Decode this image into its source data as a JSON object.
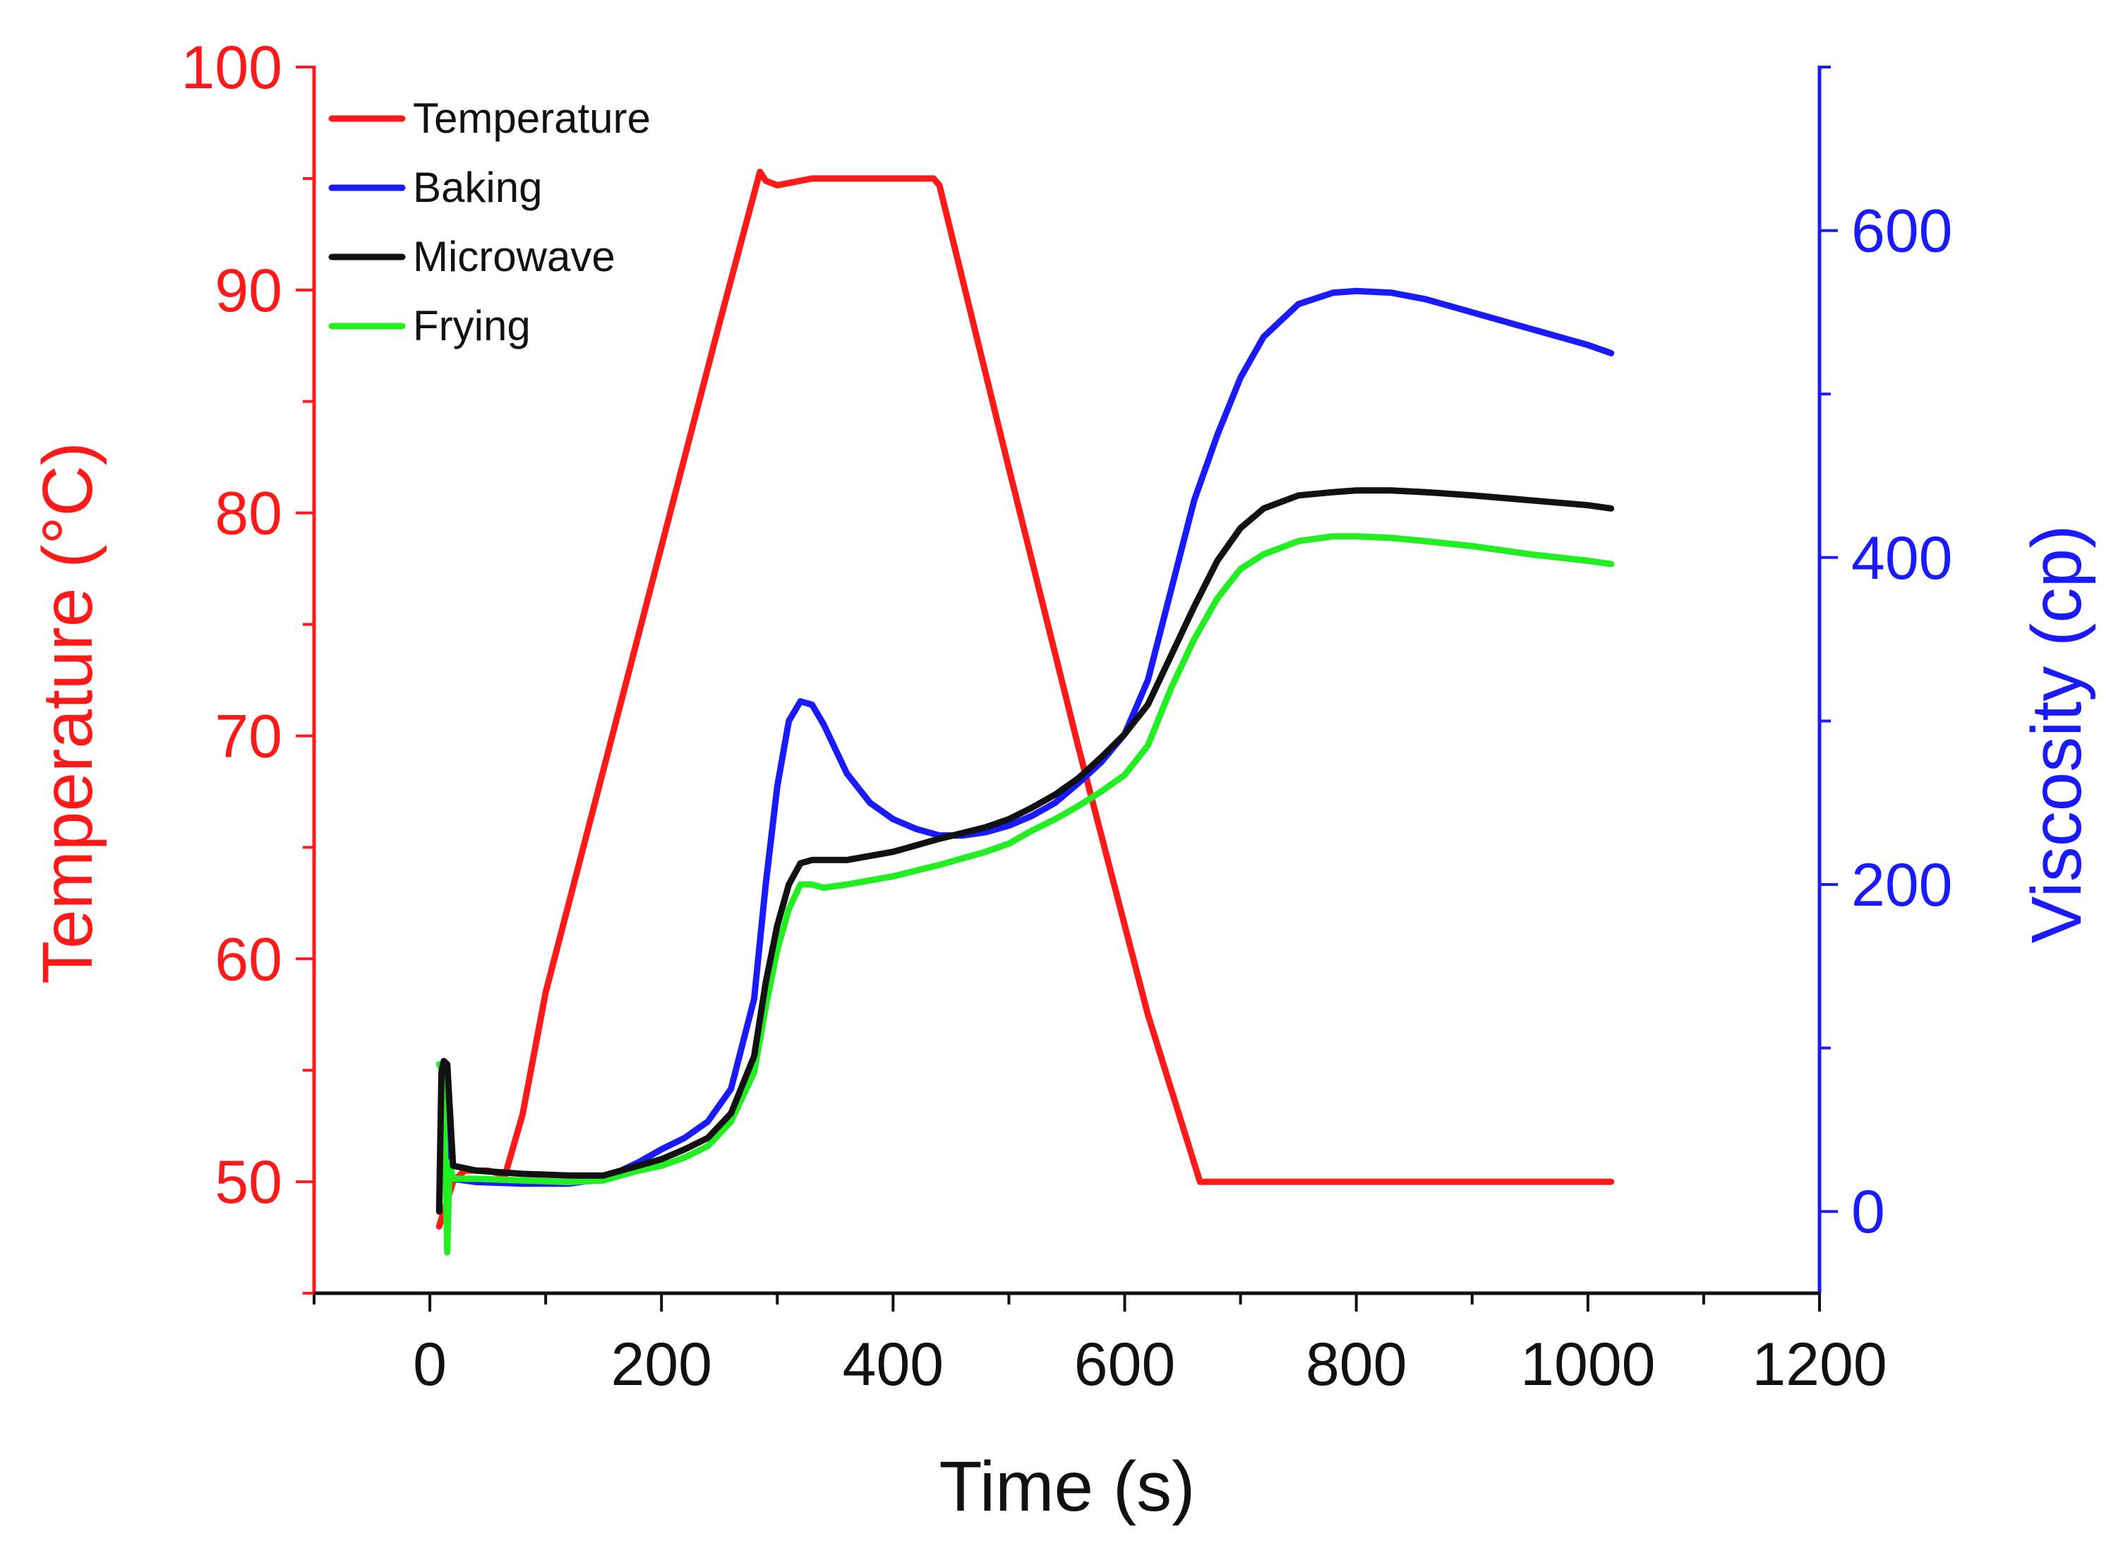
{
  "chart_data": {
    "type": "line",
    "title": "",
    "xlabel": "Time (s)",
    "ylabel_left": "Temperature (°C)",
    "ylabel_right": "Viscosity (cp)",
    "xlim": [
      -100,
      1200
    ],
    "ylim_left": [
      45,
      100
    ],
    "ylim_right": [
      -50,
      700
    ],
    "x_ticks": [
      0,
      200,
      400,
      600,
      800,
      1000,
      1200
    ],
    "y_left_ticks": [
      50,
      60,
      70,
      80,
      90,
      100
    ],
    "y_right_ticks": [
      0,
      200,
      400,
      600
    ],
    "grid": false,
    "legend_position": "top-left",
    "colors": {
      "left_axis": "#ff1a1a",
      "right_axis": "#1a1aff",
      "x_axis": "#111111"
    },
    "series": [
      {
        "name": "Temperature",
        "axis": "left",
        "color": "#ff1a1a",
        "x": [
          8,
          20,
          30,
          50,
          65,
          80,
          100,
          150,
          200,
          250,
          285,
          290,
          300,
          330,
          400,
          435,
          440,
          500,
          560,
          620,
          665,
          700,
          800,
          900,
          1020
        ],
        "y": [
          48.0,
          50.0,
          50.5,
          50.5,
          50.3,
          53.0,
          58.5,
          68.5,
          78.5,
          88.5,
          95.3,
          94.9,
          94.7,
          95.0,
          95.0,
          95.0,
          94.7,
          82.0,
          69.5,
          57.5,
          50.0,
          50.0,
          50.0,
          50.0,
          50.0
        ]
      },
      {
        "name": "Baking",
        "axis": "right",
        "color": "#1a1aff",
        "x": [
          10,
          13,
          15,
          17,
          20,
          40,
          80,
          120,
          150,
          180,
          200,
          220,
          240,
          260,
          280,
          290,
          300,
          310,
          320,
          330,
          340,
          360,
          380,
          400,
          420,
          440,
          460,
          480,
          500,
          520,
          540,
          560,
          580,
          600,
          620,
          640,
          660,
          680,
          700,
          720,
          750,
          780,
          800,
          830,
          860,
          900,
          950,
          1000,
          1020
        ],
        "y": [
          75,
          90,
          60,
          25,
          20,
          18,
          17,
          17,
          20,
          30,
          38,
          45,
          55,
          75,
          130,
          200,
          260,
          300,
          312,
          310,
          298,
          268,
          250,
          240,
          234,
          230,
          230,
          232,
          236,
          242,
          250,
          262,
          275,
          292,
          325,
          380,
          435,
          475,
          510,
          535,
          555,
          562,
          563,
          562,
          558,
          550,
          540,
          530,
          525
        ]
      },
      {
        "name": "Microwave",
        "axis": "right",
        "color": "#111111",
        "x": [
          8,
          10,
          12,
          15,
          20,
          40,
          80,
          120,
          150,
          180,
          200,
          220,
          240,
          260,
          280,
          290,
          300,
          310,
          320,
          330,
          340,
          360,
          400,
          440,
          480,
          500,
          520,
          540,
          560,
          580,
          600,
          620,
          640,
          660,
          680,
          700,
          720,
          750,
          780,
          800,
          830,
          860,
          900,
          950,
          1000,
          1020
        ],
        "y": [
          0,
          85,
          92,
          90,
          28,
          25,
          23,
          22,
          22,
          28,
          32,
          38,
          45,
          60,
          95,
          140,
          175,
          200,
          213,
          215,
          215,
          215,
          220,
          228,
          235,
          240,
          247,
          255,
          265,
          278,
          292,
          310,
          340,
          370,
          398,
          418,
          430,
          438,
          440,
          441,
          441,
          440,
          438,
          435,
          432,
          430
        ]
      },
      {
        "name": "Frying",
        "axis": "right",
        "color": "#22ee22",
        "x": [
          8,
          10,
          13,
          15,
          17,
          20,
          40,
          80,
          120,
          150,
          180,
          200,
          220,
          240,
          260,
          280,
          290,
          300,
          310,
          320,
          330,
          340,
          360,
          400,
          440,
          480,
          500,
          520,
          540,
          560,
          580,
          600,
          620,
          640,
          660,
          680,
          700,
          720,
          750,
          780,
          800,
          830,
          860,
          900,
          950,
          1000,
          1020
        ],
        "y": [
          90,
          88,
          40,
          -25,
          30,
          20,
          20,
          19,
          18,
          19,
          25,
          28,
          33,
          40,
          55,
          85,
          125,
          160,
          185,
          200,
          200,
          198,
          200,
          205,
          212,
          220,
          225,
          233,
          240,
          248,
          257,
          267,
          285,
          320,
          350,
          375,
          393,
          402,
          410,
          413,
          413,
          412,
          410,
          407,
          402,
          398,
          396
        ]
      }
    ]
  }
}
